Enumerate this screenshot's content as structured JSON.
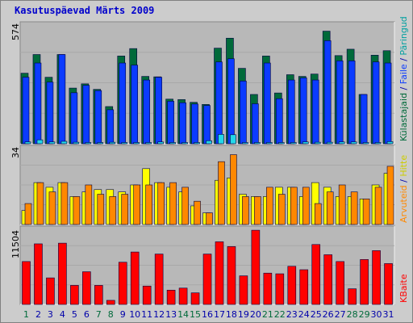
{
  "title": "Kasutuspäevad Märts 2009",
  "colors": {
    "pages_top": "#006a3a",
    "pages": "#0b3bff",
    "hits": "#23d8e8",
    "visits": "#ffff00",
    "visits_top": "#ff8800",
    "bytes": "#ff0000",
    "weekend_tick": "#006a3a",
    "tick": "#0000aa"
  },
  "chart_data": [
    {
      "type": "bar",
      "name": "top",
      "categories": [
        "1",
        "2",
        "3",
        "4",
        "5",
        "6",
        "7",
        "8",
        "9",
        "10",
        "11",
        "12",
        "13",
        "14",
        "15",
        "16",
        "17",
        "18",
        "19",
        "20",
        "21",
        "22",
        "23",
        "24",
        "25",
        "26",
        "27",
        "28",
        "29",
        "30",
        "31"
      ],
      "ymax_label": "574",
      "ylim": [
        0,
        574
      ],
      "series": [
        {
          "name": "Külastajaid",
          "values": [
            332,
            420,
            313,
            420,
            262,
            282,
            256,
            175,
            413,
            448,
            317,
            315,
            210,
            208,
            195,
            185,
            450,
            497,
            355,
            232,
            413,
            239,
            325,
            317,
            328,
            530,
            415,
            445,
            232,
            417,
            438
          ]
        },
        {
          "name": "Faile",
          "values": [
            313,
            380,
            290,
            420,
            240,
            275,
            250,
            160,
            380,
            370,
            300,
            313,
            200,
            193,
            187,
            180,
            385,
            400,
            295,
            188,
            380,
            212,
            300,
            310,
            300,
            485,
            390,
            390,
            232,
            385,
            380
          ]
        },
        {
          "name": "Päringud",
          "values": [
            176,
            183,
            176,
            178,
            175,
            174,
            174,
            175,
            174,
            174,
            174,
            176,
            174,
            174,
            174,
            180,
            201,
            200,
            174,
            174,
            174,
            174,
            174,
            176,
            175,
            175,
            176,
            176,
            174,
            174,
            177
          ]
        }
      ]
    },
    {
      "type": "bar",
      "name": "middle",
      "ymax_label": "34",
      "ylim": [
        0,
        34
      ],
      "series": [
        {
          "name": "Arvuteid",
          "values": [
            9,
            18,
            14,
            18,
            12,
            17,
            13,
            12,
            13,
            17,
            17,
            18,
            18,
            16,
            10,
            5,
            27,
            30,
            12,
            12,
            16,
            13,
            16,
            16,
            9,
            14,
            17,
            14,
            11,
            16,
            25
          ]
        },
        {
          "name": "Hitte",
          "values": [
            6,
            18,
            16,
            18,
            12,
            14,
            15,
            15,
            14,
            17,
            24,
            18,
            16,
            14,
            8,
            5,
            19,
            20,
            13,
            12,
            12,
            16,
            16,
            12,
            18,
            16,
            12,
            12,
            11,
            17,
            22
          ]
        }
      ]
    },
    {
      "type": "bar",
      "name": "bottom",
      "ymax_label": "11504",
      "ylim": [
        0,
        11504
      ],
      "series": [
        {
          "name": "KBaite",
          "values": [
            6300,
            8900,
            3900,
            9000,
            2800,
            4800,
            2800,
            600,
            6200,
            7700,
            2700,
            7400,
            2100,
            2400,
            1700,
            7400,
            9200,
            8500,
            4200,
            10900,
            4600,
            4500,
            5600,
            5100,
            8800,
            7300,
            6300,
            2300,
            6600,
            7900,
            6000
          ]
        }
      ]
    }
  ],
  "right_labels": {
    "top": [
      "Külastajaid",
      " / ",
      "Faile",
      " / ",
      "Päringud"
    ],
    "middle": [
      "Arvuteid",
      " / ",
      "Hitte"
    ],
    "bottom": [
      "KBaite"
    ]
  },
  "weekend_days": [
    1,
    7,
    8,
    14,
    15,
    21,
    22,
    28,
    29
  ]
}
